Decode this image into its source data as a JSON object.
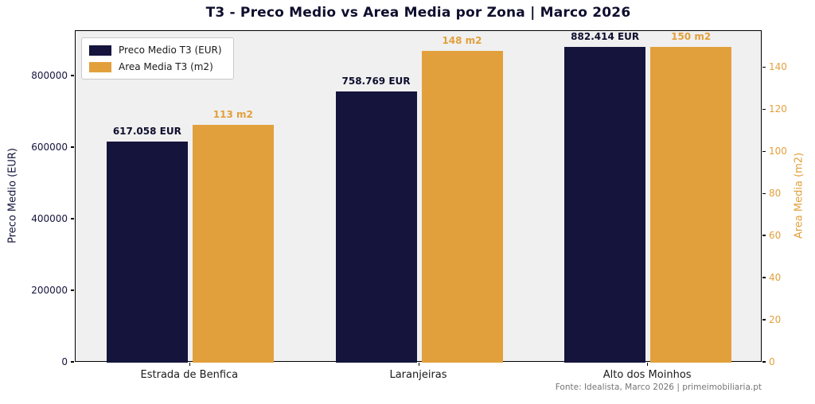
{
  "chart_data": {
    "type": "bar",
    "title": "T3 - Preco Medio vs Area Media por Zona | Marco 2026",
    "categories": [
      "Estrada de Benfica",
      "Laranjeiras",
      "Alto dos Moinhos"
    ],
    "series": [
      {
        "name": "Preco Medio T3 (EUR)",
        "axis": "left",
        "color": "#14143c",
        "label_color": "#0e0e2e",
        "values": [
          617058,
          758769,
          882414
        ],
        "labels": [
          "617.058 EUR",
          "758.769 EUR",
          "882.414 EUR"
        ]
      },
      {
        "name": "Area Media T3 (m2)",
        "axis": "right",
        "color": "#e2a03c",
        "label_color": "#e2a03c",
        "values": [
          113,
          148,
          150
        ],
        "labels": [
          "113 m2",
          "148 m2",
          "150 m2"
        ]
      }
    ],
    "left_axis": {
      "label": "Preco Medio (EUR)",
      "ticks": [
        0,
        200000,
        400000,
        600000,
        800000
      ],
      "tick_labels": [
        "0",
        "200000",
        "400000",
        "600000",
        "800000"
      ],
      "max": 926535,
      "color": "#14143c"
    },
    "right_axis": {
      "label": "Area Media (m2)",
      "ticks": [
        0,
        20,
        40,
        60,
        80,
        100,
        120,
        140
      ],
      "tick_labels": [
        "0",
        "20",
        "40",
        "60",
        "80",
        "100",
        "120",
        "140"
      ],
      "max": 157.5,
      "color": "#e2a03c"
    },
    "legend_position": "upper left",
    "grid": false,
    "plot_background": "#f0f0f0",
    "source": "Fonte: Idealista, Marco 2026 | primeimobiliaria.pt"
  }
}
